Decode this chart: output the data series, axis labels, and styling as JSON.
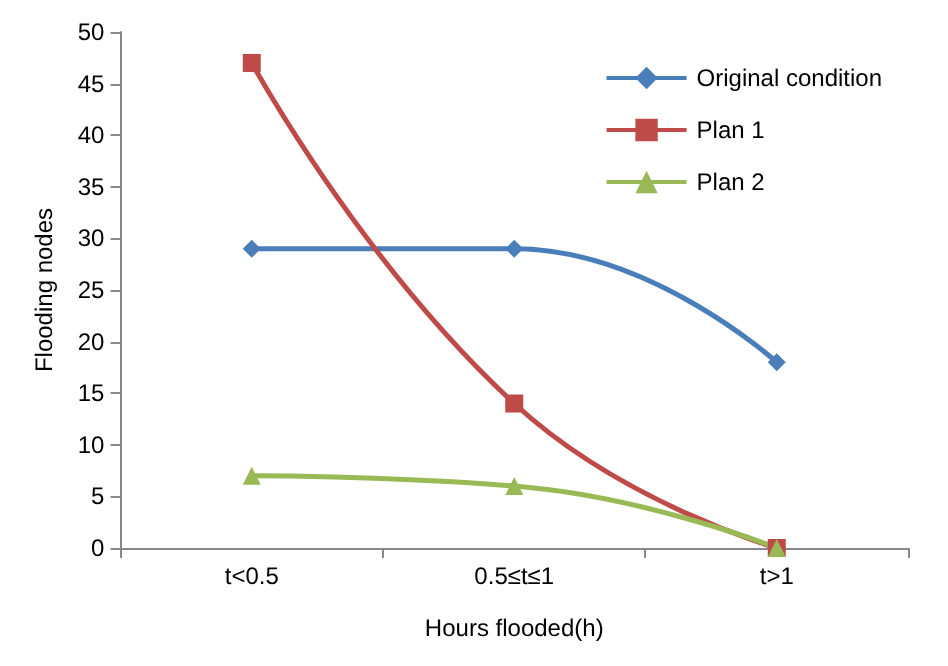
{
  "chart_data": {
    "type": "line",
    "xlabel": "Hours flooded(h)",
    "ylabel": "Flooding nodes",
    "categories": [
      "t<0.5",
      "0.5≤t≤1",
      "t>1"
    ],
    "series": [
      {
        "name": "Original condition",
        "color": "#4a7ebb",
        "marker": "diamond",
        "values": [
          29,
          29,
          18
        ]
      },
      {
        "name": "Plan 1",
        "color": "#be4b48",
        "marker": "square",
        "values": [
          47,
          14,
          0
        ]
      },
      {
        "name": "Plan 2",
        "color": "#98b954",
        "marker": "triangle",
        "values": [
          7,
          6,
          0
        ]
      }
    ],
    "ylim": [
      0,
      50
    ],
    "yticks": [
      0,
      5,
      10,
      15,
      20,
      25,
      30,
      35,
      40,
      45,
      50
    ],
    "grid": false,
    "legend": "top right",
    "line_style": "solid"
  }
}
